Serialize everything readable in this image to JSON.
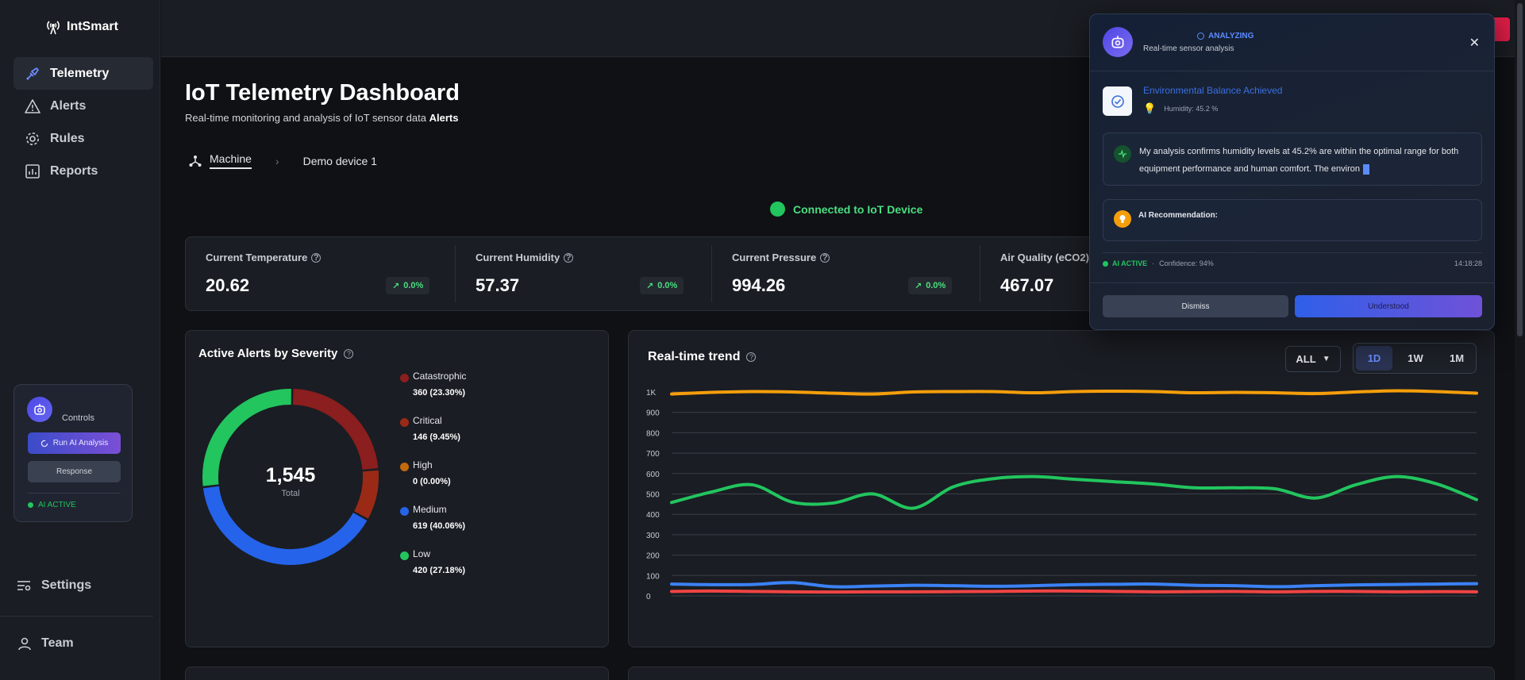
{
  "app": {
    "brand": "IntSmart"
  },
  "sidebar": {
    "items": [
      {
        "label": "Telemetry",
        "icon": "telemetry-icon",
        "active": true
      },
      {
        "label": "Alerts",
        "icon": "alert-triangle-icon",
        "active": false
      },
      {
        "label": "Rules",
        "icon": "gear-icon",
        "active": false
      },
      {
        "label": "Reports",
        "icon": "chart-icon",
        "active": false
      }
    ],
    "controls": {
      "title": "Controls",
      "run_label": "Run AI Analysis",
      "response_label": "Response",
      "status": "AI ACTIVE"
    },
    "settings_label": "Settings",
    "team_label": "Team"
  },
  "page": {
    "title": "IoT Telemetry Dashboard",
    "subtitle": "Real-time monitoring and analysis of IoT sensor data",
    "subtitle_bold": "Alerts",
    "breadcrumb": {
      "root": "Machine",
      "current": "Demo device 1"
    },
    "connection": "Connected to IoT Device"
  },
  "metrics": [
    {
      "label": "Current Temperature",
      "value": "20.62",
      "change": "0.0%"
    },
    {
      "label": "Current Humidity",
      "value": "57.37",
      "change": "0.0%"
    },
    {
      "label": "Current Pressure",
      "value": "994.26",
      "change": "0.0%"
    },
    {
      "label": "Air Quality (eCO2)",
      "value": "467.07",
      "change": ""
    }
  ],
  "alerts_panel": {
    "title": "Active Alerts by Severity",
    "total": "1,545",
    "total_label": "Total"
  },
  "trend_panel": {
    "title": "Real-time trend",
    "filter": "ALL",
    "ranges": [
      "1D",
      "1W",
      "1M"
    ],
    "active_range": "1D"
  },
  "chart_data": [
    {
      "type": "pie",
      "title": "Active Alerts by Severity",
      "categories": [
        "Catastrophic",
        "Critical",
        "High",
        "Medium",
        "Low"
      ],
      "values": [
        360,
        146,
        0,
        619,
        420
      ],
      "labels": [
        "360 (23.30%)",
        "146 (9.45%)",
        "0 (0.00%)",
        "619 (40.06%)",
        "420 (27.18%)"
      ],
      "colors": [
        "#8b1e1e",
        "#9a2a16",
        "#c26a0c",
        "#2563eb",
        "#22c55e"
      ],
      "legend": "right"
    },
    {
      "type": "line",
      "title": "Real-time trend",
      "ylim": [
        0,
        1000
      ],
      "y_ticks": [
        "0",
        "100",
        "200",
        "300",
        "400",
        "500",
        "600",
        "700",
        "800",
        "900",
        "1K"
      ],
      "grid": true,
      "x": [
        0,
        1,
        2,
        3,
        4,
        5,
        6,
        7,
        8,
        9,
        10,
        11,
        12,
        13,
        14,
        15,
        16,
        17,
        18,
        19,
        20
      ],
      "series": [
        {
          "color": "#f59e0b",
          "values": [
            990,
            998,
            1002,
            1000,
            994,
            990,
            1000,
            1002,
            1002,
            996,
            1002,
            1004,
            1002,
            996,
            998,
            996,
            992,
            1000,
            1006,
            1002,
            994
          ]
        },
        {
          "color": "#22c55e",
          "values": [
            458,
            510,
            545,
            460,
            455,
            500,
            430,
            535,
            575,
            585,
            572,
            560,
            548,
            530,
            530,
            525,
            480,
            545,
            585,
            550,
            472
          ]
        },
        {
          "color": "#3b82f6",
          "values": [
            58,
            55,
            56,
            65,
            45,
            48,
            52,
            50,
            47,
            50,
            55,
            57,
            58,
            52,
            50,
            45,
            50,
            54,
            56,
            58,
            60
          ]
        },
        {
          "color": "#ef4444",
          "values": [
            22,
            24,
            22,
            20,
            19,
            20,
            20,
            21,
            22,
            24,
            24,
            22,
            20,
            21,
            22,
            20,
            22,
            22,
            20,
            21,
            20
          ]
        }
      ]
    }
  ],
  "ai_popup": {
    "status": "ANALYZING",
    "subtitle": "Real-time sensor analysis",
    "insight_title": "Environmental Balance Achieved",
    "insight_meta": "Humidity: 45.2 %",
    "message": "My analysis confirms humidity levels at 45.2% are within the optimal range for both equipment performance and human comfort. The environ",
    "recommendation_label": "AI Recommendation:",
    "footer_status": "AI ACTIVE",
    "confidence": "Confidence: 94%",
    "time": "14:18:28",
    "dismiss_label": "Dismiss",
    "understood_label": "Understood"
  }
}
